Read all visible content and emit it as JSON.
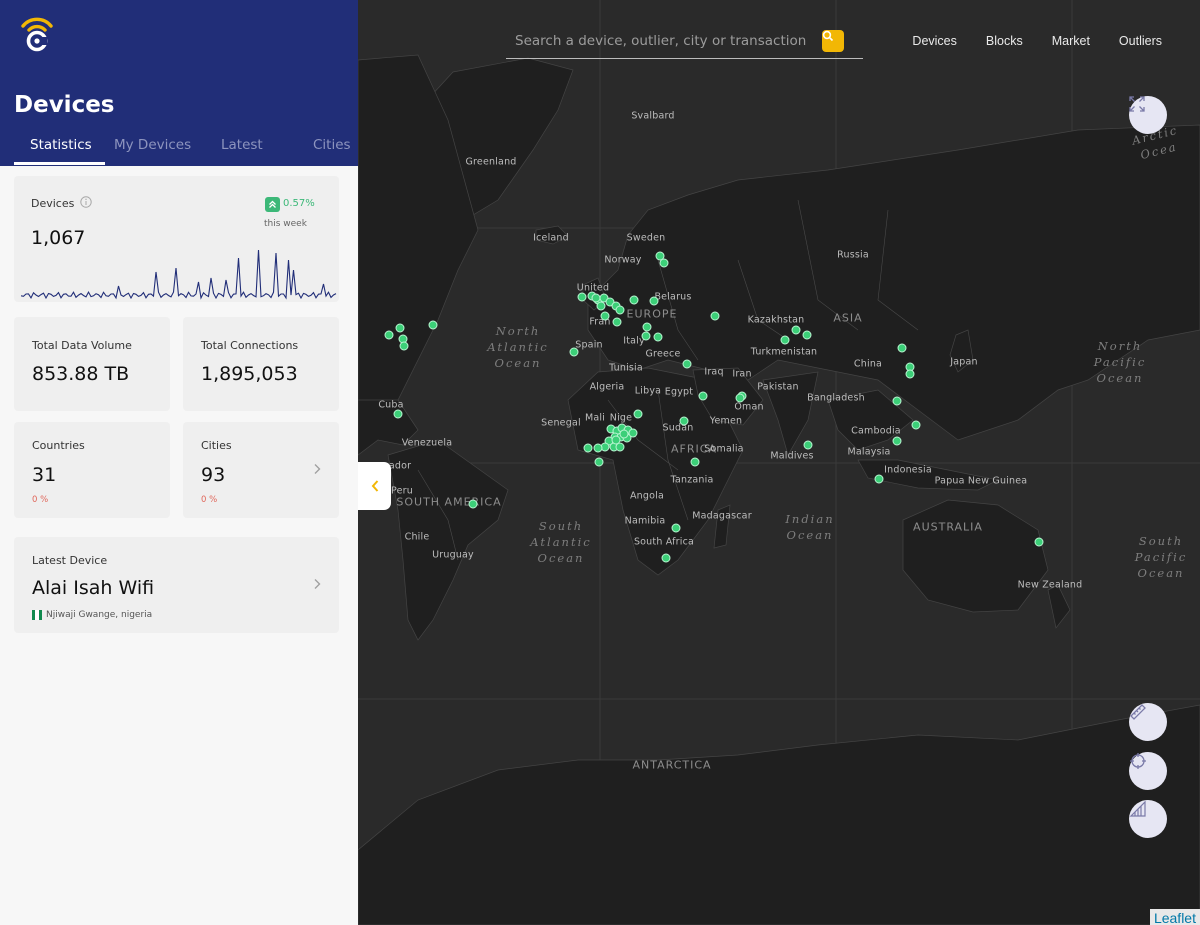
{
  "search": {
    "placeholder": "Search a device, outlier, city or transaction"
  },
  "top_nav": [
    "Devices",
    "Blocks",
    "Market",
    "Outliers"
  ],
  "map": {
    "attribution": "Leaflet",
    "labels": [
      {
        "text": "Svalbard",
        "kind": "country"
      },
      {
        "text": "Greenland",
        "kind": "country"
      },
      {
        "text": "Iceland",
        "kind": "country"
      },
      {
        "text": "Sweden",
        "kind": "country"
      },
      {
        "text": "Norway",
        "kind": "country"
      },
      {
        "text": "Russia",
        "kind": "country"
      },
      {
        "text": "United",
        "kind": "country"
      },
      {
        "text": "Belarus",
        "kind": "country"
      },
      {
        "text": "EUROPE",
        "kind": "continent"
      },
      {
        "text": "Kazakhstan",
        "kind": "country"
      },
      {
        "text": "ASIA",
        "kind": "continent"
      },
      {
        "text": "Fran",
        "kind": "country"
      },
      {
        "text": "Spain",
        "kind": "country"
      },
      {
        "text": "Italy",
        "kind": "country"
      },
      {
        "text": "Greece",
        "kind": "country"
      },
      {
        "text": "Turkmenistan",
        "kind": "country"
      },
      {
        "text": "China",
        "kind": "country"
      },
      {
        "text": "Japan",
        "kind": "country"
      },
      {
        "text": "Tunisia",
        "kind": "country"
      },
      {
        "text": "Iraq",
        "kind": "country"
      },
      {
        "text": "Iran",
        "kind": "country"
      },
      {
        "text": "Algeria",
        "kind": "country"
      },
      {
        "text": "Libya",
        "kind": "country"
      },
      {
        "text": "Egypt",
        "kind": "country"
      },
      {
        "text": "Pakistan",
        "kind": "country"
      },
      {
        "text": "Bangladesh",
        "kind": "country"
      },
      {
        "text": "Oman",
        "kind": "country"
      },
      {
        "text": "Cuba",
        "kind": "country"
      },
      {
        "text": "Mali",
        "kind": "country"
      },
      {
        "text": "Nige",
        "kind": "country"
      },
      {
        "text": "Senegal",
        "kind": "country"
      },
      {
        "text": "Sudan",
        "kind": "country"
      },
      {
        "text": "Yemen",
        "kind": "country"
      },
      {
        "text": "Cambodia",
        "kind": "country"
      },
      {
        "text": "Venezuela",
        "kind": "country"
      },
      {
        "text": "AFRICA",
        "kind": "continent"
      },
      {
        "text": "Somalia",
        "kind": "country"
      },
      {
        "text": "Maldives",
        "kind": "country"
      },
      {
        "text": "Malaysia",
        "kind": "country"
      },
      {
        "text": "ador",
        "kind": "country"
      },
      {
        "text": "Indonesia",
        "kind": "country"
      },
      {
        "text": "Papua New\nGuinea",
        "kind": "country"
      },
      {
        "text": "Peru",
        "kind": "country"
      },
      {
        "text": "SOUTH\nAMERICA",
        "kind": "continent"
      },
      {
        "text": "Tanzania",
        "kind": "country"
      },
      {
        "text": "Angola",
        "kind": "country"
      },
      {
        "text": "Madagascar",
        "kind": "country"
      },
      {
        "text": "Namibia",
        "kind": "country"
      },
      {
        "text": "AUSTRALIA",
        "kind": "continent"
      },
      {
        "text": "Chile",
        "kind": "country"
      },
      {
        "text": "Uruguay",
        "kind": "country"
      },
      {
        "text": "South Africa",
        "kind": "country"
      },
      {
        "text": "New Zealand",
        "kind": "country"
      },
      {
        "text": "ANTARCTICA",
        "kind": "continent"
      },
      {
        "text": "North\nAtlantic\nOcean",
        "kind": "ocean"
      },
      {
        "text": "North\nPacific\nOcean",
        "kind": "ocean"
      },
      {
        "text": "South\nAtlantic\nOcean",
        "kind": "ocean"
      },
      {
        "text": "Indian\nOcean",
        "kind": "ocean"
      },
      {
        "text": "South\nPacific\nOcean",
        "kind": "ocean"
      },
      {
        "text": "Arctic Ocea",
        "kind": "ocean"
      }
    ]
  },
  "sidebar": {
    "title": "Devices",
    "tabs": [
      "Statistics",
      "My Devices",
      "Latest",
      "Cities"
    ],
    "devices_card": {
      "label": "Devices",
      "value": "1,067",
      "change": "0.57%",
      "change_period": "this week",
      "trend_color": "#3cb878"
    },
    "data_volume": {
      "label": "Total Data Volume",
      "value": "853.88 TB"
    },
    "connections": {
      "label": "Total Connections",
      "value": "1,895,053"
    },
    "countries": {
      "label": "Countries",
      "value": "31",
      "change": "0 %"
    },
    "cities": {
      "label": "Cities",
      "value": "93",
      "change": "0 %"
    },
    "latest_device": {
      "label": "Latest Device",
      "name": "Alai Isah Wifi",
      "location": "Njiwaji Gwange, nigeria"
    }
  },
  "colors": {
    "sidebar_header": "#212e78",
    "accent": "#f2b705",
    "marker": "#3ccf78",
    "map_bg": "#2a2a2a"
  }
}
